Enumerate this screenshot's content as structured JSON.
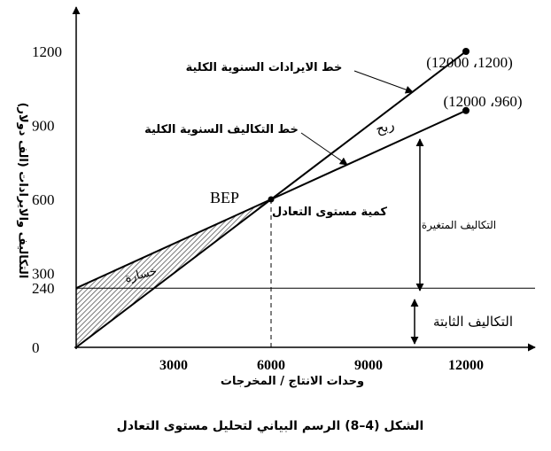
{
  "chart_data": {
    "type": "line",
    "caption": "الشكل (4–8) الرسم البياني لتحليل مستوى التعادل",
    "xlabel": "وحدات الانتاج / المخرجات",
    "ylabel": "التكاليف والايرادات (الف دولار)",
    "x_ticks": [
      "3000",
      "6000",
      "9000",
      "12000"
    ],
    "x_tick_values": [
      3000,
      6000,
      9000,
      12000
    ],
    "y_ticks": [
      "0",
      "240",
      "300",
      "600",
      "900",
      "1200"
    ],
    "y_tick_values": [
      0,
      240,
      300,
      600,
      900,
      1200
    ],
    "xlim": [
      0,
      14000
    ],
    "ylim": [
      0,
      1320
    ],
    "series": [
      {
        "name": "خط الايرادات السنوية الكلية",
        "x": [
          0,
          12000
        ],
        "values": [
          0,
          1200
        ]
      },
      {
        "name": "خط التكاليف السنوية الكلية",
        "x": [
          0,
          12000
        ],
        "values": [
          240,
          960
        ]
      }
    ],
    "fixed_cost": 240,
    "bep": {
      "label": "BEP",
      "x": 6000,
      "y": 600,
      "note": "كمية مستوى التعادل"
    },
    "point_labels": [
      {
        "text": "(12000 ،1200)",
        "x": 12000,
        "y": 1200
      },
      {
        "text": "(12000 ،960)",
        "x": 12000,
        "y": 960
      }
    ],
    "region_labels": {
      "profit": "ربح",
      "loss": "خسارة",
      "variable_costs": "التكاليف المتغيرة",
      "fixed_costs": "التكاليف الثابتة"
    },
    "grid": false,
    "legend": "none"
  }
}
